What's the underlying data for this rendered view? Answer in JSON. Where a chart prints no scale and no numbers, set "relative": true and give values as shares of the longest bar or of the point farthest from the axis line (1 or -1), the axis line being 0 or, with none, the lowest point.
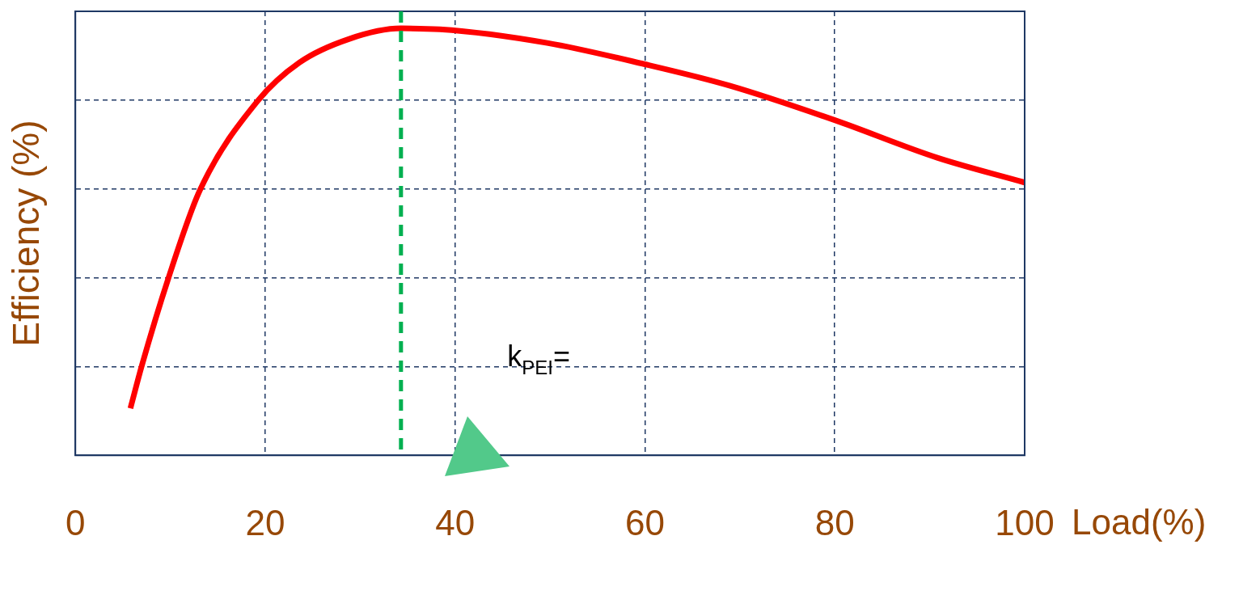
{
  "chart_data": {
    "type": "line",
    "xlabel": "Load(%)",
    "ylabel": "Efficiency (%)",
    "relative": true,
    "xlim": [
      0,
      100
    ],
    "xticks": [
      0,
      20,
      40,
      60,
      80,
      100
    ],
    "grid": true,
    "legend": false,
    "marker": "none",
    "line_style": "solid",
    "x": [
      5.8,
      7,
      9.8,
      13.1,
      19.2,
      23.6,
      28.8,
      34.3,
      38.4,
      49.7,
      60,
      68.9,
      80,
      90.8,
      100
    ],
    "series": [
      {
        "color": "#ff0000",
        "values": [
          0.11,
          0.21,
          0.415,
          0.62,
          0.83,
          0.92,
          0.975,
          1.0,
          0.998,
          0.966,
          0.916,
          0.866,
          0.785,
          0.697,
          0.639
        ]
      }
    ],
    "ref_lines": [
      {
        "axis": "x",
        "value": 34.3,
        "color": "#00b050",
        "line_style": "dashed"
      }
    ],
    "annotations": [
      "k$_{PEI}$="
    ]
  }
}
